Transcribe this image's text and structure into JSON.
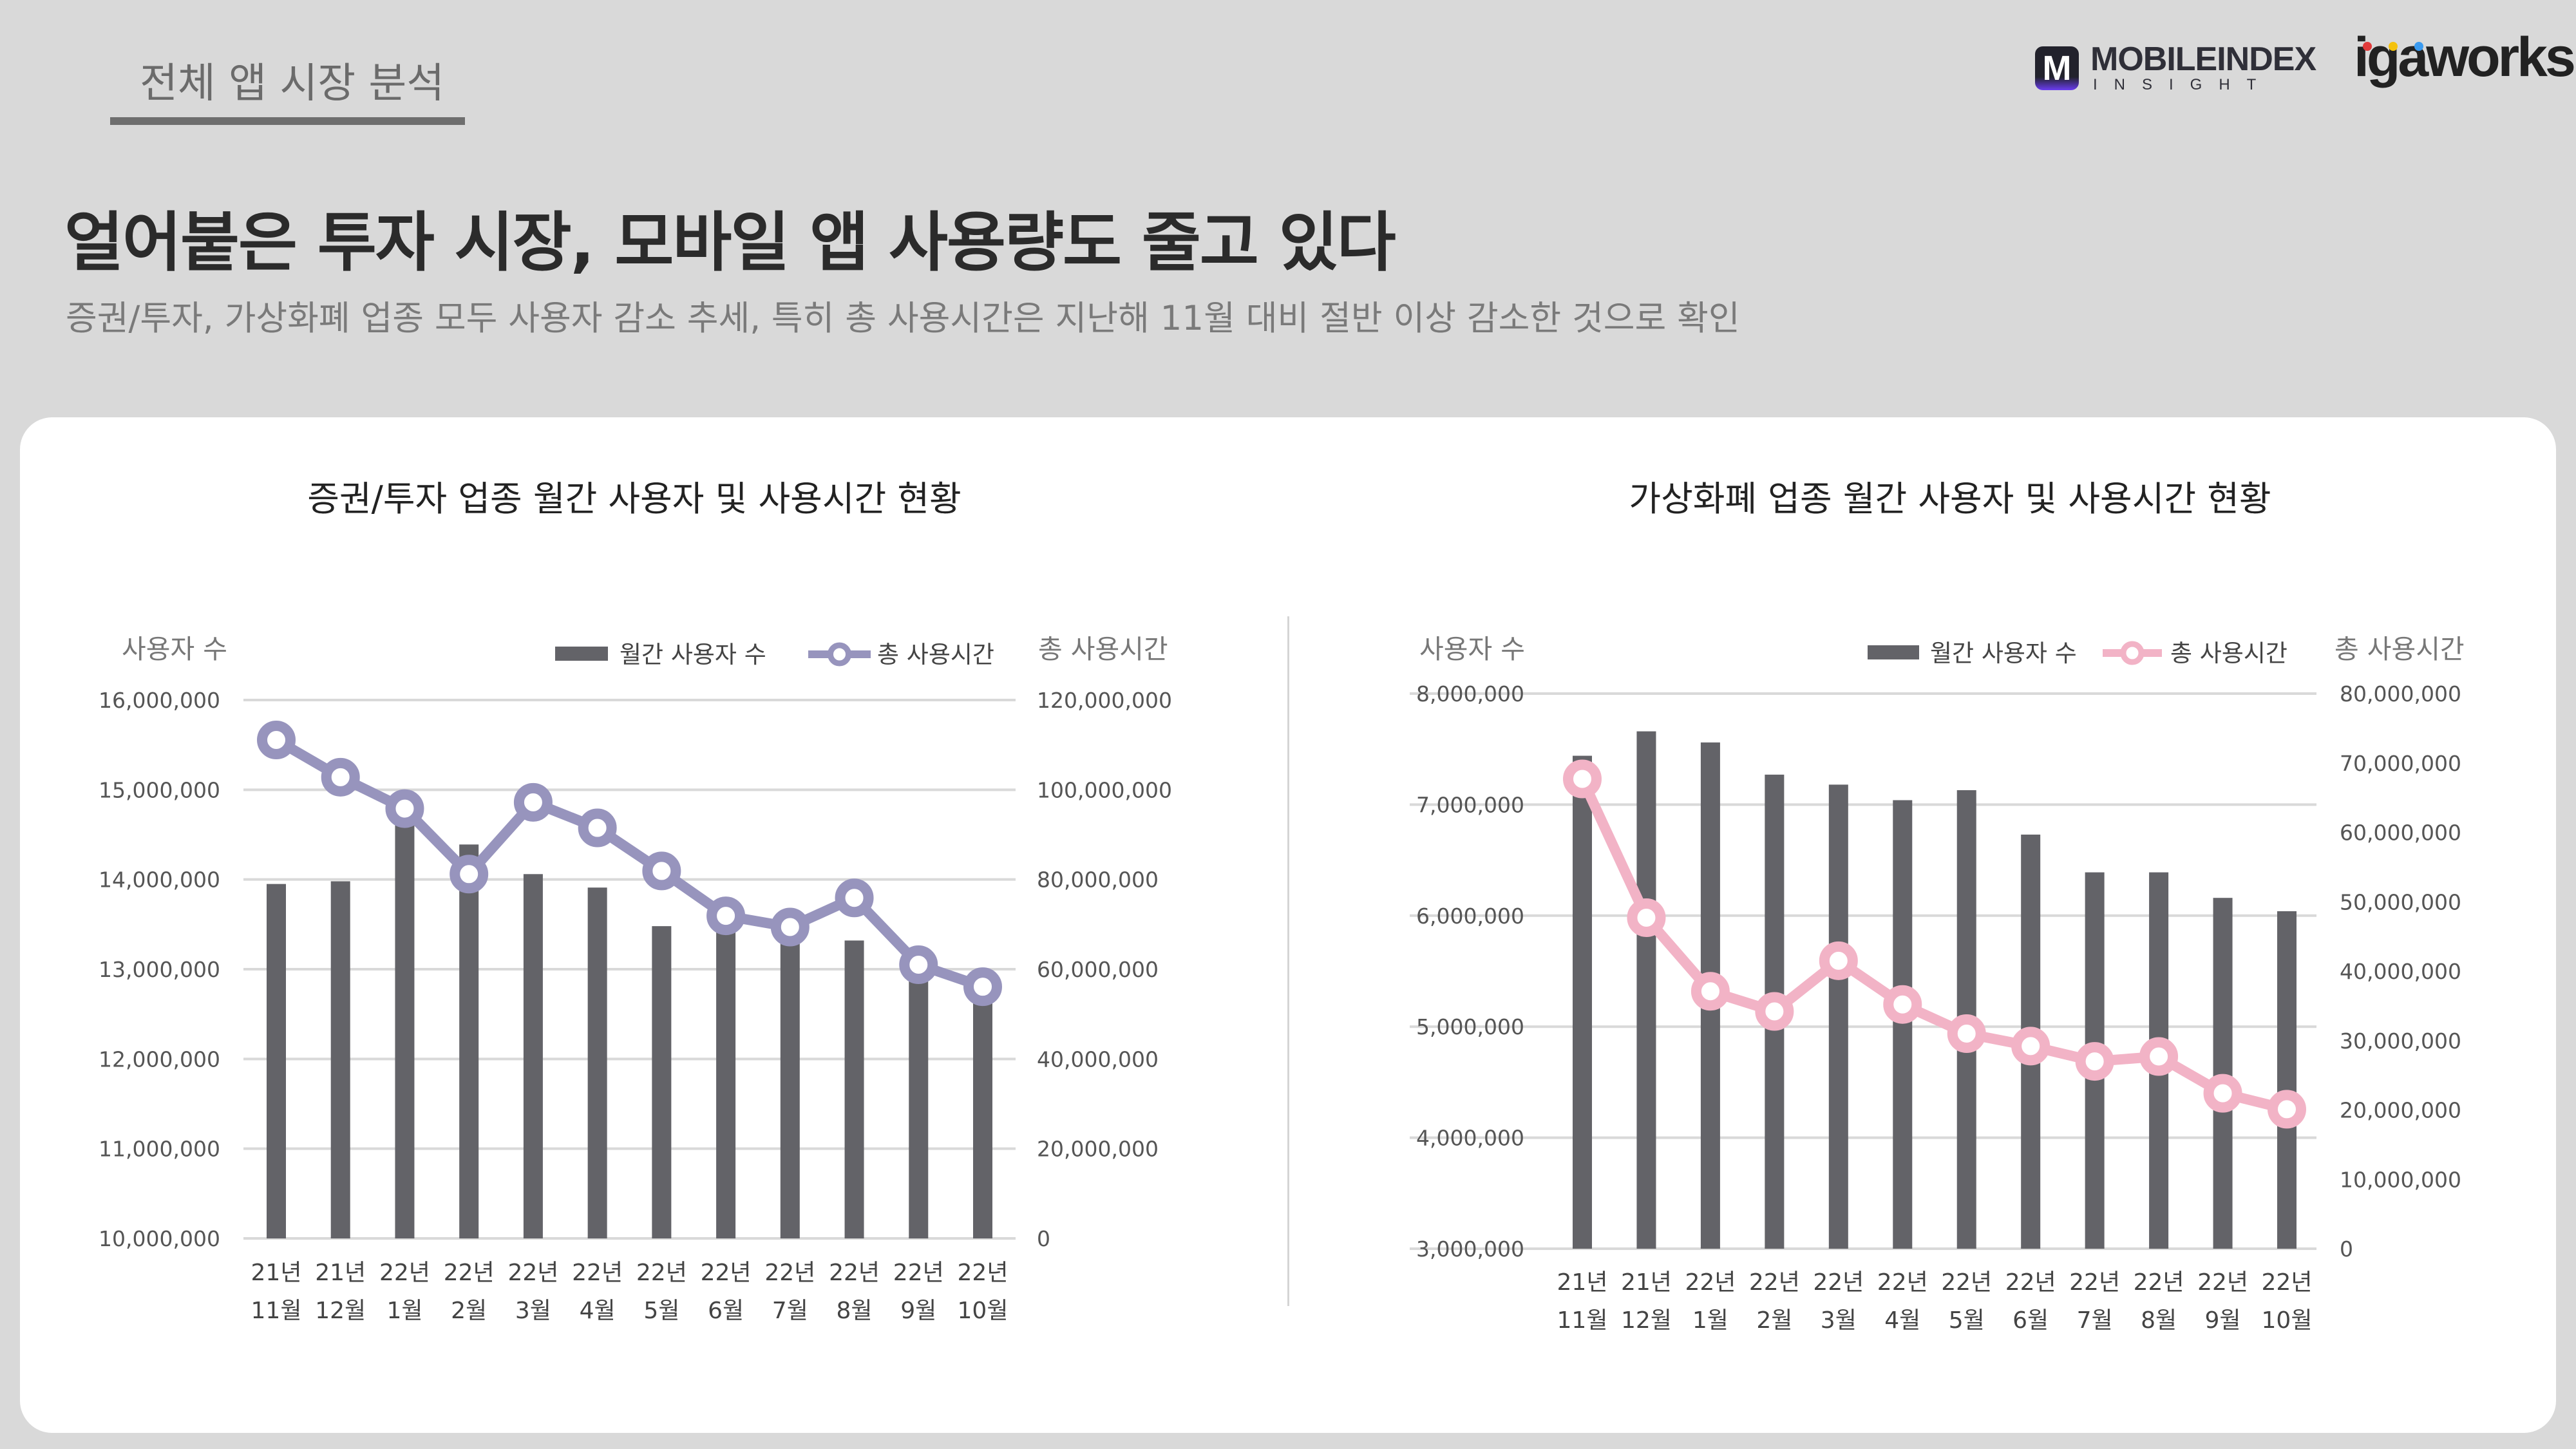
{
  "header": {
    "section_tab": "전체 앱 시장 분석",
    "title": "얼어붙은 투자 시장, 모바일 앱 사용량도 줄고 있다",
    "subtitle": "증권/투자, 가상화폐 업종 모두 사용자 감소 추세, 특히 총 사용시간은 지난해 11월 대비 절반 이상 감소한 것으로 확인",
    "logos": {
      "mobileindex": "MOBILEINDEX",
      "mobileindex_sub": "INSIGHT",
      "mobileindex_mark": "M",
      "igaworks": "igaworks"
    }
  },
  "colors": {
    "background": "#d9d9d9",
    "bar": "#636368",
    "line_left": "#9794bd",
    "line_right": "#f2b3c6",
    "grid": "#d9d9d9"
  },
  "chart_data": [
    {
      "type": "bar+line",
      "title": "증권/투자 업종 월간 사용자 및 사용시간 현황",
      "y_left_label": "사용자 수",
      "y_right_label": "총 사용시간",
      "legend": [
        "월간 사용자 수",
        "총 사용시간"
      ],
      "categories": [
        [
          "21년",
          "11월"
        ],
        [
          "21년",
          "12월"
        ],
        [
          "22년",
          "1월"
        ],
        [
          "22년",
          "2월"
        ],
        [
          "22년",
          "3월"
        ],
        [
          "22년",
          "4월"
        ],
        [
          "22년",
          "5월"
        ],
        [
          "22년",
          "6월"
        ],
        [
          "22년",
          "7월"
        ],
        [
          "22년",
          "8월"
        ],
        [
          "22년",
          "9월"
        ],
        [
          "22년",
          "10월"
        ]
      ],
      "y_left_ticks": [
        "10,000,000",
        "11,000,000",
        "12,000,000",
        "13,000,000",
        "14,000,000",
        "15,000,000",
        "16,000,000"
      ],
      "y_right_ticks": [
        "0",
        "20,000,000",
        "40,000,000",
        "60,000,000",
        "80,000,000",
        "100,000,000",
        "120,000,000"
      ],
      "ylim_left": [
        10000000,
        16000000
      ],
      "ylim_right": [
        0,
        120000000
      ],
      "series": [
        {
          "name": "월간 사용자 수",
          "type": "bar",
          "axis": "left",
          "values": [
            13950000,
            13980000,
            14650000,
            14390000,
            14060000,
            13910000,
            13480000,
            13430000,
            13350000,
            13320000,
            12900000,
            12650000
          ]
        },
        {
          "name": "총 사용시간",
          "type": "line",
          "axis": "right",
          "values": [
            111100000,
            102800000,
            95800000,
            81200000,
            97200000,
            91500000,
            81900000,
            71900000,
            69400000,
            75900000,
            61000000,
            56100000
          ]
        }
      ]
    },
    {
      "type": "bar+line",
      "title": "가상화폐 업종 월간 사용자 및 사용시간 현황",
      "y_left_label": "사용자 수",
      "y_right_label": "총 사용시간",
      "legend": [
        "월간 사용자 수",
        "총 사용시간"
      ],
      "categories": [
        [
          "21년",
          "11월"
        ],
        [
          "21년",
          "12월"
        ],
        [
          "22년",
          "1월"
        ],
        [
          "22년",
          "2월"
        ],
        [
          "22년",
          "3월"
        ],
        [
          "22년",
          "4월"
        ],
        [
          "22년",
          "5월"
        ],
        [
          "22년",
          "6월"
        ],
        [
          "22년",
          "7월"
        ],
        [
          "22년",
          "8월"
        ],
        [
          "22년",
          "9월"
        ],
        [
          "22년",
          "10월"
        ]
      ],
      "y_left_ticks": [
        "3,000,000",
        "4,000,000",
        "5,000,000",
        "6,000,000",
        "7,000,000",
        "8,000,000"
      ],
      "y_right_ticks": [
        "0",
        "10,000,000",
        "20,000,000",
        "30,000,000",
        "40,000,000",
        "50,000,000",
        "60,000,000",
        "70,000,000",
        "80,000,000"
      ],
      "ylim_left": [
        3000000,
        8000000
      ],
      "ylim_right": [
        0,
        80000000
      ],
      "series": [
        {
          "name": "월간 사용자 수",
          "type": "bar",
          "axis": "left",
          "values": [
            7440000,
            7660000,
            7560000,
            7270000,
            7180000,
            7040000,
            7130000,
            6730000,
            6390000,
            6390000,
            6160000,
            6040000
          ]
        },
        {
          "name": "총 사용시간",
          "type": "line",
          "axis": "right",
          "values": [
            67700000,
            47700000,
            37100000,
            34200000,
            41500000,
            35200000,
            31000000,
            29200000,
            27000000,
            27700000,
            22400000,
            20100000
          ]
        }
      ]
    }
  ]
}
